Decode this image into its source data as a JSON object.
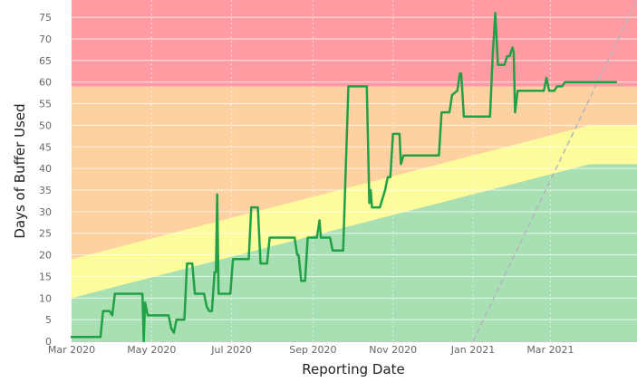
{
  "chart_data": {
    "type": "line",
    "xlabel": "Reporting Date",
    "ylabel": "Days of Buffer Used",
    "ylim": [
      0,
      79
    ],
    "xlim": [
      "2020-03-01",
      "2021-05-06"
    ],
    "y_ticks": [
      "0",
      "5",
      "10",
      "15",
      "20",
      "25",
      "30",
      "35",
      "40",
      "45",
      "50",
      "55",
      "60",
      "65",
      "70",
      "75"
    ],
    "x_ticks": [
      {
        "label": "Mar 2020",
        "date": "2020-03-01"
      },
      {
        "label": "May 2020",
        "date": "2020-05-01"
      },
      {
        "label": "Jul 2020",
        "date": "2020-07-01"
      },
      {
        "label": "Sep 2020",
        "date": "2020-09-01"
      },
      {
        "label": "Nov 2020",
        "date": "2020-11-01"
      },
      {
        "label": "Jan 2021",
        "date": "2021-01-01"
      },
      {
        "label": "Mar 2021",
        "date": "2021-03-01"
      }
    ],
    "grid": true,
    "zones": {
      "green_top": [
        {
          "x": "2020-03-01",
          "y": 10
        },
        {
          "x": "2021-03-31",
          "y": 41
        },
        {
          "x": "2021-05-06",
          "y": 41
        }
      ],
      "yellow_top": [
        {
          "x": "2020-03-01",
          "y": 19
        },
        {
          "x": "2021-03-31",
          "y": 50
        },
        {
          "x": "2021-05-06",
          "y": 50
        }
      ],
      "orange_top": [
        {
          "x": "2020-03-01",
          "y": 59
        },
        {
          "x": "2021-05-06",
          "y": 59
        }
      ],
      "colors": {
        "green": "#a8dfb3",
        "yellow": "#fdfc9c",
        "orange": "#fed1a0",
        "red": "#ff9ba3"
      }
    },
    "reference_line": {
      "points": [
        {
          "x": "2021-01-01",
          "y": 0
        },
        {
          "x": "2021-05-06",
          "y": 79
        }
      ],
      "color": "#b4b4bd",
      "style": "dashed"
    },
    "series": [
      {
        "color": "#22a046",
        "points": [
          {
            "x": "2020-03-01",
            "y": 1
          },
          {
            "x": "2020-03-23",
            "y": 1
          },
          {
            "x": "2020-03-25",
            "y": 7
          },
          {
            "x": "2020-03-30",
            "y": 7
          },
          {
            "x": "2020-04-01",
            "y": 6
          },
          {
            "x": "2020-04-03",
            "y": 11
          },
          {
            "x": "2020-04-24",
            "y": 11
          },
          {
            "x": "2020-04-25",
            "y": 0
          },
          {
            "x": "2020-04-26",
            "y": 9
          },
          {
            "x": "2020-04-28",
            "y": 6
          },
          {
            "x": "2020-05-14",
            "y": 6
          },
          {
            "x": "2020-05-16",
            "y": 3
          },
          {
            "x": "2020-05-18",
            "y": 2
          },
          {
            "x": "2020-05-20",
            "y": 5
          },
          {
            "x": "2020-05-26",
            "y": 5
          },
          {
            "x": "2020-05-28",
            "y": 18
          },
          {
            "x": "2020-06-01",
            "y": 18
          },
          {
            "x": "2020-06-03",
            "y": 11
          },
          {
            "x": "2020-06-10",
            "y": 11
          },
          {
            "x": "2020-06-12",
            "y": 8
          },
          {
            "x": "2020-06-14",
            "y": 7
          },
          {
            "x": "2020-06-16",
            "y": 7
          },
          {
            "x": "2020-06-18",
            "y": 16
          },
          {
            "x": "2020-06-19",
            "y": 16
          },
          {
            "x": "2020-06-20",
            "y": 34
          },
          {
            "x": "2020-06-21",
            "y": 11
          },
          {
            "x": "2020-06-30",
            "y": 11
          },
          {
            "x": "2020-07-02",
            "y": 19
          },
          {
            "x": "2020-07-14",
            "y": 19
          },
          {
            "x": "2020-07-16",
            "y": 31
          },
          {
            "x": "2020-07-21",
            "y": 31
          },
          {
            "x": "2020-07-23",
            "y": 18
          },
          {
            "x": "2020-07-28",
            "y": 18
          },
          {
            "x": "2020-07-30",
            "y": 24
          },
          {
            "x": "2020-08-18",
            "y": 24
          },
          {
            "x": "2020-08-20",
            "y": 20
          },
          {
            "x": "2020-08-21",
            "y": 20
          },
          {
            "x": "2020-08-23",
            "y": 14
          },
          {
            "x": "2020-08-26",
            "y": 14
          },
          {
            "x": "2020-08-28",
            "y": 24
          },
          {
            "x": "2020-09-04",
            "y": 24
          },
          {
            "x": "2020-09-06",
            "y": 28
          },
          {
            "x": "2020-09-07",
            "y": 24
          },
          {
            "x": "2020-09-14",
            "y": 24
          },
          {
            "x": "2020-09-16",
            "y": 21
          },
          {
            "x": "2020-09-24",
            "y": 21
          },
          {
            "x": "2020-09-28",
            "y": 59
          },
          {
            "x": "2020-10-12",
            "y": 59
          },
          {
            "x": "2020-10-14",
            "y": 32
          },
          {
            "x": "2020-10-15",
            "y": 35
          },
          {
            "x": "2020-10-16",
            "y": 31
          },
          {
            "x": "2020-10-22",
            "y": 31
          },
          {
            "x": "2020-10-24",
            "y": 33
          },
          {
            "x": "2020-10-26",
            "y": 35
          },
          {
            "x": "2020-10-28",
            "y": 38
          },
          {
            "x": "2020-10-30",
            "y": 38
          },
          {
            "x": "2020-11-01",
            "y": 48
          },
          {
            "x": "2020-11-06",
            "y": 48
          },
          {
            "x": "2020-11-07",
            "y": 41
          },
          {
            "x": "2020-11-09",
            "y": 43
          },
          {
            "x": "2020-12-06",
            "y": 43
          },
          {
            "x": "2020-12-08",
            "y": 53
          },
          {
            "x": "2020-12-14",
            "y": 53
          },
          {
            "x": "2020-12-16",
            "y": 57
          },
          {
            "x": "2020-12-20",
            "y": 58
          },
          {
            "x": "2020-12-22",
            "y": 62
          },
          {
            "x": "2020-12-23",
            "y": 62
          },
          {
            "x": "2020-12-25",
            "y": 52
          },
          {
            "x": "2021-01-14",
            "y": 52
          },
          {
            "x": "2021-01-16",
            "y": 66
          },
          {
            "x": "2021-01-18",
            "y": 76
          },
          {
            "x": "2021-01-20",
            "y": 64
          },
          {
            "x": "2021-01-25",
            "y": 64
          },
          {
            "x": "2021-01-27",
            "y": 66
          },
          {
            "x": "2021-01-29",
            "y": 66
          },
          {
            "x": "2021-01-31",
            "y": 68
          },
          {
            "x": "2021-02-01",
            "y": 67
          },
          {
            "x": "2021-02-02",
            "y": 53
          },
          {
            "x": "2021-02-04",
            "y": 58
          },
          {
            "x": "2021-02-24",
            "y": 58
          },
          {
            "x": "2021-02-26",
            "y": 61
          },
          {
            "x": "2021-02-28",
            "y": 58
          },
          {
            "x": "2021-03-04",
            "y": 58
          },
          {
            "x": "2021-03-06",
            "y": 59
          },
          {
            "x": "2021-03-10",
            "y": 59
          },
          {
            "x": "2021-03-12",
            "y": 60
          },
          {
            "x": "2021-04-20",
            "y": 60
          }
        ]
      }
    ]
  }
}
